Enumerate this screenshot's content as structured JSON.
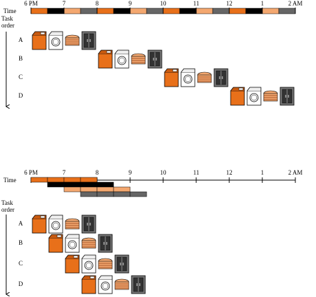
{
  "top": {
    "axis_label": "Time",
    "order_label": [
      "Task",
      "order"
    ],
    "hours": [
      "6 PM",
      "7",
      "8",
      "9",
      "10",
      "11",
      "12",
      "1",
      "2 AM"
    ],
    "tasks": [
      "A",
      "B",
      "C",
      "D"
    ]
  },
  "bottom": {
    "axis_label": "Time",
    "order_label": [
      "Task",
      "order"
    ],
    "hours": [
      "6 PM",
      "7",
      "8",
      "9",
      "10",
      "11",
      "12",
      "1",
      "2 AM"
    ],
    "tasks": [
      "A",
      "B",
      "C",
      "D"
    ]
  }
}
